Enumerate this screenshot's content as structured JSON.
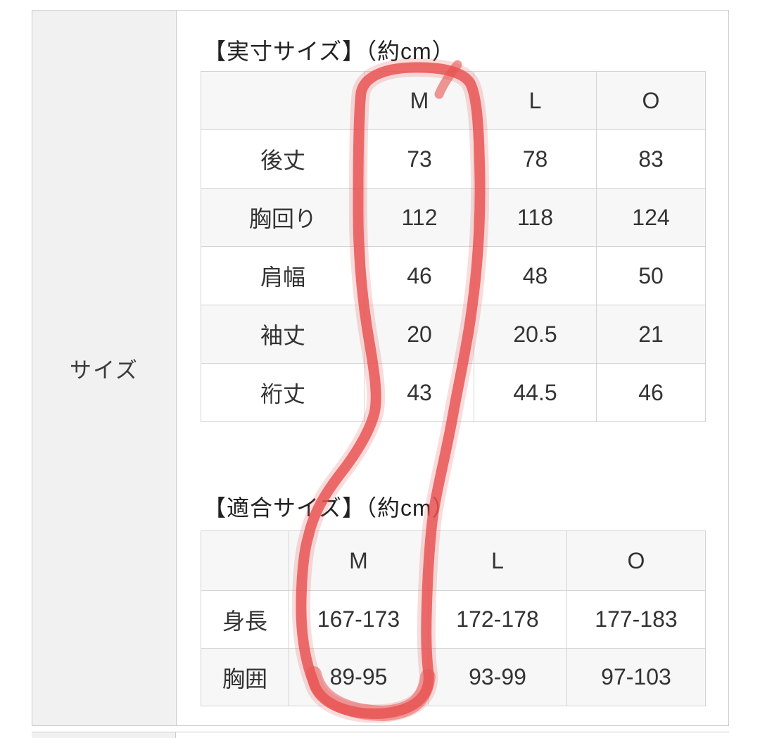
{
  "sidebar_label": "サイズ",
  "tables": [
    {
      "title": "【実寸サイズ】（約cm）",
      "columns": [
        "",
        "M",
        "L",
        "O"
      ],
      "rows": [
        {
          "label": "後丈",
          "values": [
            "73",
            "78",
            "83"
          ]
        },
        {
          "label": "胸回り",
          "values": [
            "112",
            "118",
            "124"
          ]
        },
        {
          "label": "肩幅",
          "values": [
            "46",
            "48",
            "50"
          ]
        },
        {
          "label": "袖丈",
          "values": [
            "20",
            "20.5",
            "21"
          ]
        },
        {
          "label": "裄丈",
          "values": [
            "43",
            "44.5",
            "46"
          ]
        }
      ]
    },
    {
      "title": "【適合サイズ】（約cm）",
      "columns": [
        "",
        "M",
        "L",
        "O"
      ],
      "rows": [
        {
          "label": "身長",
          "values": [
            "167-173",
            "172-178",
            "177-183"
          ]
        },
        {
          "label": "胸囲",
          "values": [
            "89-95",
            "93-99",
            "97-103"
          ]
        }
      ]
    }
  ],
  "annotation": {
    "type": "hand-drawn-marker-loop",
    "color": "#e8514f",
    "highlighted_column": "M",
    "spans": "M column of both size tables"
  }
}
